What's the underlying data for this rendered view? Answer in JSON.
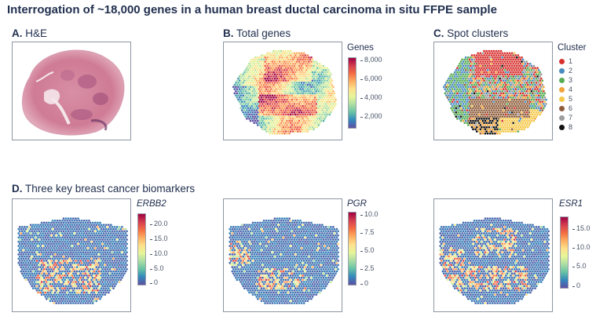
{
  "figure_title": "Interrogation of ~18,000 genes in a human breast ductal carcinoma in situ FFPE sample",
  "panels": {
    "a": {
      "letter": "A.",
      "name": "H&E"
    },
    "b": {
      "letter": "B.",
      "name": "Total genes",
      "scale_title": "Genes",
      "ticks": [
        "8,000",
        "6,000",
        "4,000",
        "2,000"
      ]
    },
    "c": {
      "letter": "C.",
      "name": "Spot clusters",
      "legend_title": "Cluster",
      "clusters": [
        {
          "label": "1",
          "color": "#d7312f"
        },
        {
          "label": "2",
          "color": "#4a8bbf"
        },
        {
          "label": "3",
          "color": "#57ad55"
        },
        {
          "label": "4",
          "color": "#f2a33a"
        },
        {
          "label": "5",
          "color": "#f5c84a"
        },
        {
          "label": "6",
          "color": "#8e5c3a"
        },
        {
          "label": "7",
          "color": "#9d9d9d"
        },
        {
          "label": "8",
          "color": "#111111"
        }
      ]
    },
    "d": {
      "letter": "D.",
      "name": "Three key breast cancer biomarkers"
    },
    "erbb2": {
      "gene": "ERBB2",
      "ticks": [
        "20.0",
        "15.0",
        "10.0",
        "5.0",
        "0"
      ]
    },
    "pgr": {
      "gene": "PGR",
      "ticks": [
        "10.0",
        "7.5",
        "5.0",
        "2.5",
        "0"
      ]
    },
    "esr1": {
      "gene": "ESR1",
      "ticks": [
        "15.0",
        "10.0",
        "5.0",
        "0"
      ]
    }
  },
  "colors": {
    "spectral_scale": [
      "#5e4fa2",
      "#3288bd",
      "#66c2a5",
      "#abdda4",
      "#e6f598",
      "#fee08b",
      "#fdae61",
      "#f46d43",
      "#d53e4f",
      "#9e0142"
    ],
    "frame": "#8d96a3",
    "title_text": "#22304f"
  }
}
